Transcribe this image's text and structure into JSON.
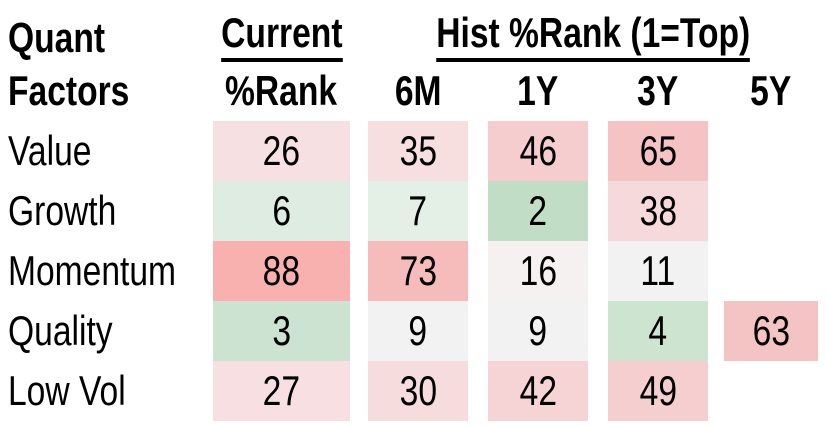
{
  "table": {
    "corner": {
      "line1": "Quant",
      "line2": "Factors"
    },
    "groups": {
      "current": "Current",
      "hist": "Hist %Rank (1=Top)"
    },
    "columns": [
      "%Rank",
      "6M",
      "1Y",
      "3Y",
      "5Y"
    ],
    "rows": [
      {
        "label": "Value",
        "cells": [
          {
            "v": "26",
            "bg": "#f7e0e2"
          },
          {
            "v": "35",
            "bg": "#f7dedf"
          },
          {
            "v": "46",
            "bg": "#f5cdcf"
          },
          {
            "v": "65",
            "bg": "#f5c3c3"
          },
          {
            "v": "",
            "bg": ""
          }
        ]
      },
      {
        "label": "Growth",
        "cells": [
          {
            "v": "6",
            "bg": "#dfece2"
          },
          {
            "v": "7",
            "bg": "#e4efe6"
          },
          {
            "v": "2",
            "bg": "#c2ddc6"
          },
          {
            "v": "38",
            "bg": "#f6d9da"
          },
          {
            "v": "",
            "bg": ""
          }
        ]
      },
      {
        "label": "Momentum",
        "cells": [
          {
            "v": "88",
            "bg": "#f9b1af"
          },
          {
            "v": "73",
            "bg": "#f6bcbb"
          },
          {
            "v": "16",
            "bg": "#f4f1f0"
          },
          {
            "v": "11",
            "bg": "#f3f2f2"
          },
          {
            "v": "",
            "bg": ""
          }
        ]
      },
      {
        "label": "Quality",
        "cells": [
          {
            "v": "3",
            "bg": "#cbe3d0"
          },
          {
            "v": "9",
            "bg": "#f2f2f2"
          },
          {
            "v": "9",
            "bg": "#f2f2f2"
          },
          {
            "v": "4",
            "bg": "#cde4d1"
          },
          {
            "v": "63",
            "bg": "#f4c3c4"
          }
        ]
      },
      {
        "label": "Low Vol",
        "cells": [
          {
            "v": "27",
            "bg": "#f8e0e2"
          },
          {
            "v": "30",
            "bg": "#f7dcde"
          },
          {
            "v": "42",
            "bg": "#f6d4d5"
          },
          {
            "v": "49",
            "bg": "#f5cfd0"
          },
          {
            "v": "",
            "bg": ""
          }
        ]
      }
    ]
  },
  "colors": {
    "scale_low_green": "#c2ddc6",
    "scale_mid_white": "#f3f2f2",
    "scale_high_red": "#f9b1af",
    "text": "#000000"
  },
  "chart_data": {
    "type": "heatmap",
    "title": "Quant Factors %Rank heatmap",
    "row_labels": [
      "Value",
      "Growth",
      "Momentum",
      "Quality",
      "Low Vol"
    ],
    "columns": [
      "Current %Rank",
      "6M",
      "1Y",
      "3Y",
      "5Y"
    ],
    "column_groups": [
      {
        "label": "Current",
        "columns": [
          "%Rank"
        ]
      },
      {
        "label": "Hist %Rank (1=Top)",
        "columns": [
          "6M",
          "1Y",
          "3Y",
          "5Y"
        ]
      }
    ],
    "values": [
      [
        26,
        35,
        46,
        65,
        null
      ],
      [
        6,
        7,
        2,
        38,
        null
      ],
      [
        88,
        73,
        16,
        11,
        null
      ],
      [
        3,
        9,
        9,
        4,
        63
      ],
      [
        27,
        30,
        42,
        49,
        null
      ]
    ],
    "scale": "1 = top rank (green) to 100 = bottom rank (red), midpoint near-white",
    "legend_position": "none",
    "grid": false
  }
}
